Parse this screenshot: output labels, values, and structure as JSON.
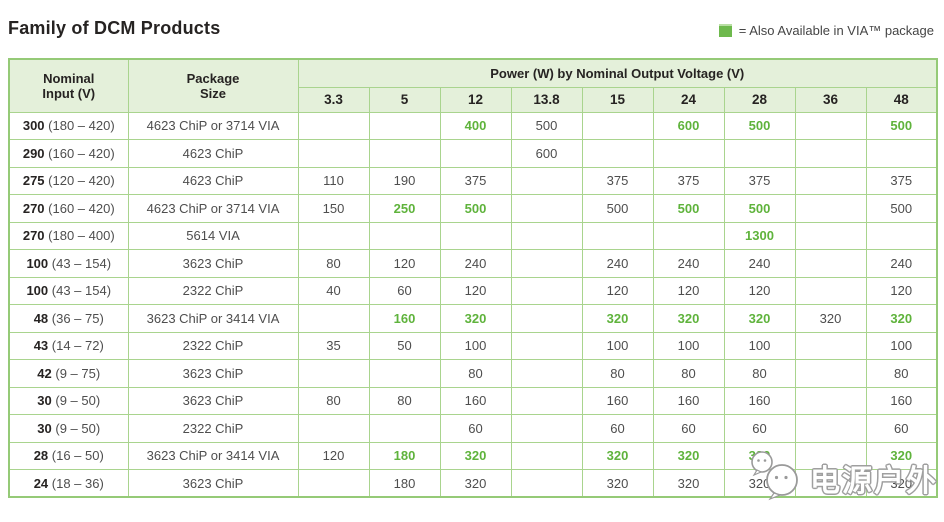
{
  "title": "Family of DCM Products",
  "legend": {
    "text": "= Also Available in VIA™ package",
    "swatch_color": "#6eb94d"
  },
  "colors": {
    "accent_green": "#5fb33c",
    "header_bg": "#e4f0da",
    "border_green": "#a9d48e",
    "text_dark": "#262322",
    "text_gray": "#4e4e4e"
  },
  "table": {
    "header": {
      "col1_line1": "Nominal",
      "col1_line2": "Input (V)",
      "col2_line1": "Package",
      "col2_line2": "Size",
      "power_title": "Power (W) by Nominal Output Voltage (V)",
      "voltages": [
        "3.3",
        "5",
        "12",
        "13.8",
        "15",
        "24",
        "28",
        "36",
        "48"
      ]
    },
    "rows": [
      {
        "nominal": "300",
        "range": "(180 – 420)",
        "package": "4623 ChiP or 3714 VIA",
        "values": [
          "",
          "",
          "400",
          "500",
          "",
          "600",
          "500",
          "",
          "500"
        ],
        "green": [
          2,
          5,
          6,
          8
        ]
      },
      {
        "nominal": "290",
        "range": "(160 – 420)",
        "package": "4623 ChiP",
        "values": [
          "",
          "",
          "",
          "600",
          "",
          "",
          "",
          "",
          ""
        ],
        "green": []
      },
      {
        "nominal": "275",
        "range": "(120 – 420)",
        "package": "4623 ChiP",
        "values": [
          "110",
          "190",
          "375",
          "",
          "375",
          "375",
          "375",
          "",
          "375"
        ],
        "green": []
      },
      {
        "nominal": "270",
        "range": "(160 – 420)",
        "package": "4623 ChiP or 3714 VIA",
        "values": [
          "150",
          "250",
          "500",
          "",
          "500",
          "500",
          "500",
          "",
          "500"
        ],
        "green": [
          1,
          2,
          5,
          6
        ]
      },
      {
        "nominal": "270",
        "range": "(180 – 400)",
        "package": "5614 VIA",
        "values": [
          "",
          "",
          "",
          "",
          "",
          "",
          "1300",
          "",
          ""
        ],
        "green": [
          6
        ]
      },
      {
        "nominal": "100",
        "range": "(43 – 154)",
        "package": "3623 ChiP",
        "values": [
          "80",
          "120",
          "240",
          "",
          "240",
          "240",
          "240",
          "",
          "240"
        ],
        "green": []
      },
      {
        "nominal": "100",
        "range": "(43 – 154)",
        "package": "2322 ChiP",
        "values": [
          "40",
          "60",
          "120",
          "",
          "120",
          "120",
          "120",
          "",
          "120"
        ],
        "green": []
      },
      {
        "nominal": "48",
        "range": "(36 – 75)",
        "package": "3623 ChiP or 3414 VIA",
        "values": [
          "",
          "160",
          "320",
          "",
          "320",
          "320",
          "320",
          "320",
          "320"
        ],
        "green": [
          1,
          2,
          4,
          5,
          6,
          8
        ]
      },
      {
        "nominal": "43",
        "range": "(14 – 72)",
        "package": "2322 ChiP",
        "values": [
          "35",
          "50",
          "100",
          "",
          "100",
          "100",
          "100",
          "",
          "100"
        ],
        "green": []
      },
      {
        "nominal": "42",
        "range": "(9 – 75)",
        "package": "3623 ChiP",
        "values": [
          "",
          "",
          "80",
          "",
          "80",
          "80",
          "80",
          "",
          "80"
        ],
        "green": []
      },
      {
        "nominal": "30",
        "range": "(9 – 50)",
        "package": "3623 ChiP",
        "values": [
          "80",
          "80",
          "160",
          "",
          "160",
          "160",
          "160",
          "",
          "160"
        ],
        "green": []
      },
      {
        "nominal": "30",
        "range": "(9 – 50)",
        "package": "2322 ChiP",
        "values": [
          "",
          "",
          "60",
          "",
          "60",
          "60",
          "60",
          "",
          "60"
        ],
        "green": []
      },
      {
        "nominal": "28",
        "range": "(16 – 50)",
        "package": "3623 ChiP or 3414 VIA",
        "values": [
          "120",
          "180",
          "320",
          "",
          "320",
          "320",
          "320",
          "",
          "320"
        ],
        "green": [
          1,
          2,
          4,
          5,
          6,
          8
        ]
      },
      {
        "nominal": "24",
        "range": "(18 – 36)",
        "package": "3623 ChiP",
        "values": [
          "",
          "180",
          "320",
          "",
          "320",
          "320",
          "320",
          "",
          "320"
        ],
        "green": []
      }
    ]
  },
  "watermark": {
    "text": "电源户外"
  }
}
